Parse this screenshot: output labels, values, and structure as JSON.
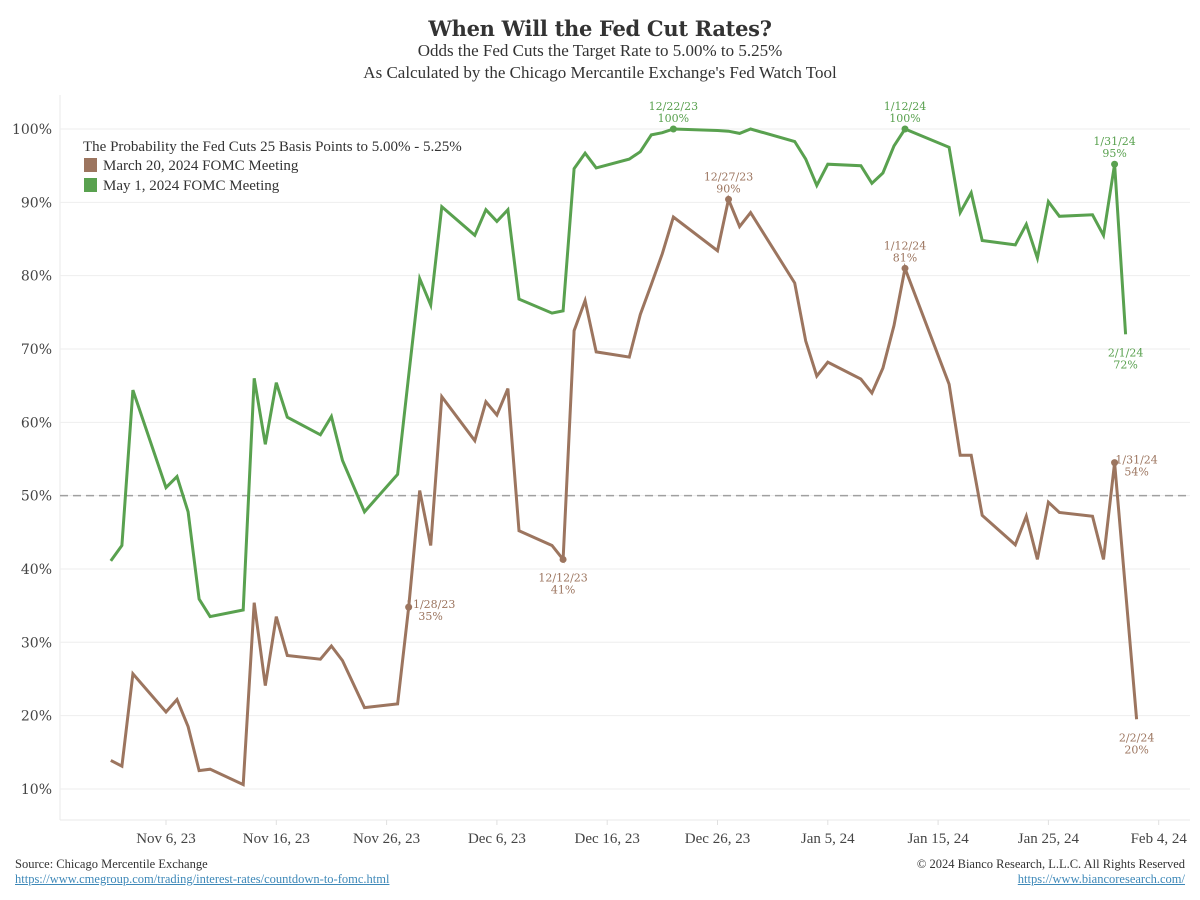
{
  "chart_data": {
    "type": "line",
    "title": "When Will the Fed Cut Rates?",
    "subtitle": [
      "Odds the Fed Cuts the Target Rate to 5.00% to 5.25%",
      "As Calculated by the Chicago Mercantile Exchange's Fed Watch Tool"
    ],
    "legend_title": "The Probability the Fed Cuts 25 Basis Points to 5.00% - 5.25%",
    "legend_position": "top-left",
    "xlabel": "",
    "ylabel": "",
    "ylim": [
      5,
      105
    ],
    "xlim": [
      "2023-10-27",
      "2024-02-06"
    ],
    "y_ticks": [
      10,
      20,
      30,
      40,
      50,
      60,
      70,
      80,
      90,
      100
    ],
    "y_tick_labels": [
      "10%",
      "20%",
      "30%",
      "40%",
      "50%",
      "60%",
      "70%",
      "80%",
      "90%",
      "100%"
    ],
    "x_ticks": [
      "2023-11-06",
      "2023-11-16",
      "2023-11-26",
      "2023-12-06",
      "2023-12-16",
      "2023-12-26",
      "2024-01-05",
      "2024-01-15",
      "2024-01-25",
      "2024-02-04"
    ],
    "x_tick_labels": [
      "Nov 6, 23",
      "Nov 16, 23",
      "Nov 26, 23",
      "Dec 6, 23",
      "Dec 16, 23",
      "Dec 26, 23",
      "Jan 5, 24",
      "Jan 15, 24",
      "Jan 25, 24",
      "Feb 4, 24"
    ],
    "grid": "horizontal",
    "reference_line": {
      "value": 50,
      "style": "dashed",
      "color": "#a0a0a0"
    },
    "series": [
      {
        "name": "March 20, 2024 FOMC Meeting",
        "color": "#9c755f",
        "data": [
          [
            "2023-11-01",
            13.9
          ],
          [
            "2023-11-02",
            13.1
          ],
          [
            "2023-11-03",
            25.7
          ],
          [
            "2023-11-06",
            20.5
          ],
          [
            "2023-11-07",
            22.2
          ],
          [
            "2023-11-08",
            18.5
          ],
          [
            "2023-11-09",
            12.5
          ],
          [
            "2023-11-10",
            12.7
          ],
          [
            "2023-11-13",
            10.6
          ],
          [
            "2023-11-14",
            35.4
          ],
          [
            "2023-11-15",
            24.1
          ],
          [
            "2023-11-16",
            33.5
          ],
          [
            "2023-11-17",
            28.2
          ],
          [
            "2023-11-20",
            27.7
          ],
          [
            "2023-11-21",
            29.5
          ],
          [
            "2023-11-22",
            27.5
          ],
          [
            "2023-11-24",
            21.1
          ],
          [
            "2023-11-27",
            21.6
          ],
          [
            "2023-11-28",
            34.8
          ],
          [
            "2023-11-29",
            50.7
          ],
          [
            "2023-11-30",
            43.2
          ],
          [
            "2023-12-01",
            63.5
          ],
          [
            "2023-12-04",
            57.5
          ],
          [
            "2023-12-05",
            62.8
          ],
          [
            "2023-12-06",
            61.0
          ],
          [
            "2023-12-07",
            64.6
          ],
          [
            "2023-12-08",
            45.2
          ],
          [
            "2023-12-11",
            43.2
          ],
          [
            "2023-12-12",
            41.3
          ],
          [
            "2023-12-13",
            72.5
          ],
          [
            "2023-12-14",
            76.6
          ],
          [
            "2023-12-15",
            69.6
          ],
          [
            "2023-12-18",
            68.9
          ],
          [
            "2023-12-19",
            74.7
          ],
          [
            "2023-12-20",
            78.8
          ],
          [
            "2023-12-21",
            83.0
          ],
          [
            "2023-12-22",
            88.0
          ],
          [
            "2023-12-26",
            83.4
          ],
          [
            "2023-12-27",
            90.4
          ],
          [
            "2023-12-28",
            86.7
          ],
          [
            "2023-12-29",
            88.6
          ],
          [
            "2024-01-02",
            79.0
          ],
          [
            "2024-01-03",
            71.1
          ],
          [
            "2024-01-04",
            66.3
          ],
          [
            "2024-01-05",
            68.2
          ],
          [
            "2024-01-08",
            65.9
          ],
          [
            "2024-01-09",
            64.0
          ],
          [
            "2024-01-10",
            67.4
          ],
          [
            "2024-01-11",
            73.2
          ],
          [
            "2024-01-12",
            81.0
          ],
          [
            "2024-01-16",
            65.2
          ],
          [
            "2024-01-17",
            55.5
          ],
          [
            "2024-01-18",
            55.5
          ],
          [
            "2024-01-19",
            47.3
          ],
          [
            "2024-01-22",
            43.3
          ],
          [
            "2024-01-23",
            47.2
          ],
          [
            "2024-01-24",
            41.3
          ],
          [
            "2024-01-25",
            49.1
          ],
          [
            "2024-01-26",
            47.7
          ],
          [
            "2024-01-29",
            47.2
          ],
          [
            "2024-01-30",
            41.3
          ],
          [
            "2024-01-31",
            54.5
          ],
          [
            "2024-02-01",
            37.0
          ],
          [
            "2024-02-02",
            19.5
          ]
        ]
      },
      {
        "name": "May 1, 2024 FOMC Meeting",
        "color": "#59a14f",
        "data": [
          [
            "2023-11-01",
            41.1
          ],
          [
            "2023-11-02",
            43.2
          ],
          [
            "2023-11-03",
            64.4
          ],
          [
            "2023-11-06",
            51.1
          ],
          [
            "2023-11-07",
            52.6
          ],
          [
            "2023-11-08",
            47.8
          ],
          [
            "2023-11-09",
            35.9
          ],
          [
            "2023-11-10",
            33.5
          ],
          [
            "2023-11-13",
            34.4
          ],
          [
            "2023-11-14",
            66.0
          ],
          [
            "2023-11-15",
            57.0
          ],
          [
            "2023-11-16",
            65.4
          ],
          [
            "2023-11-17",
            60.7
          ],
          [
            "2023-11-20",
            58.3
          ],
          [
            "2023-11-21",
            60.8
          ],
          [
            "2023-11-22",
            54.8
          ],
          [
            "2023-11-24",
            47.8
          ],
          [
            "2023-11-27",
            52.9
          ],
          [
            "2023-11-28",
            66.4
          ],
          [
            "2023-11-29",
            79.6
          ],
          [
            "2023-11-30",
            76.0
          ],
          [
            "2023-12-01",
            89.4
          ],
          [
            "2023-12-04",
            85.5
          ],
          [
            "2023-12-05",
            89.0
          ],
          [
            "2023-12-06",
            87.4
          ],
          [
            "2023-12-07",
            89.0
          ],
          [
            "2023-12-08",
            76.8
          ],
          [
            "2023-12-11",
            74.9
          ],
          [
            "2023-12-12",
            75.2
          ],
          [
            "2023-12-13",
            94.6
          ],
          [
            "2023-12-14",
            96.7
          ],
          [
            "2023-12-15",
            94.7
          ],
          [
            "2023-12-18",
            95.9
          ],
          [
            "2023-12-19",
            96.9
          ],
          [
            "2023-12-20",
            99.2
          ],
          [
            "2023-12-21",
            99.5
          ],
          [
            "2023-12-22",
            100.0
          ],
          [
            "2023-12-26",
            99.8
          ],
          [
            "2023-12-27",
            99.7
          ],
          [
            "2023-12-28",
            99.4
          ],
          [
            "2023-12-29",
            100.0
          ],
          [
            "2024-01-02",
            98.3
          ],
          [
            "2024-01-03",
            95.9
          ],
          [
            "2024-01-04",
            92.3
          ],
          [
            "2024-01-05",
            95.2
          ],
          [
            "2024-01-08",
            95.0
          ],
          [
            "2024-01-09",
            92.6
          ],
          [
            "2024-01-10",
            94.0
          ],
          [
            "2024-01-11",
            97.7
          ],
          [
            "2024-01-12",
            100.0
          ],
          [
            "2024-01-16",
            97.5
          ],
          [
            "2024-01-17",
            88.6
          ],
          [
            "2024-01-18",
            91.3
          ],
          [
            "2024-01-19",
            84.8
          ],
          [
            "2024-01-22",
            84.2
          ],
          [
            "2024-01-23",
            87.0
          ],
          [
            "2024-01-24",
            82.4
          ],
          [
            "2024-01-25",
            90.1
          ],
          [
            "2024-01-26",
            88.1
          ],
          [
            "2024-01-29",
            88.3
          ],
          [
            "2024-01-30",
            85.5
          ],
          [
            "2024-01-31",
            95.2
          ],
          [
            "2024-02-01",
            72.0
          ]
        ]
      }
    ],
    "annotations": [
      {
        "series": 0,
        "date": "2023-11-28",
        "label": "11/28/23",
        "value_label": "35%",
        "placement": "right",
        "marker": true
      },
      {
        "series": 0,
        "date": "2023-12-12",
        "label": "12/12/23",
        "value_label": "41%",
        "placement": "below",
        "marker": true
      },
      {
        "series": 1,
        "date": "2023-12-22",
        "label": "12/22/23",
        "value_label": "100%",
        "placement": "above",
        "marker": true
      },
      {
        "series": 0,
        "date": "2023-12-27",
        "label": "12/27/23",
        "value_label": "90%",
        "placement": "above",
        "marker": true
      },
      {
        "series": 1,
        "date": "2024-01-12",
        "label": "1/12/24",
        "value_label": "100%",
        "placement": "above",
        "marker": true
      },
      {
        "series": 0,
        "date": "2024-01-12",
        "label": "1/12/24",
        "value_label": "81%",
        "placement": "above",
        "marker": true
      },
      {
        "series": 1,
        "date": "2024-01-31",
        "label": "1/31/24",
        "value_label": "95%",
        "placement": "above",
        "marker": true
      },
      {
        "series": 1,
        "date": "2024-02-01",
        "label": "2/1/24",
        "value_label": "72%",
        "placement": "below",
        "marker": false
      },
      {
        "series": 0,
        "date": "2024-01-31",
        "label": "1/31/24",
        "value_label": "54%",
        "placement": "right",
        "marker": true
      },
      {
        "series": 0,
        "date": "2024-02-02",
        "label": "2/2/24",
        "value_label": "20%",
        "placement": "below",
        "marker": false
      }
    ]
  },
  "footer": {
    "source": "Source: Chicago Mercentile Exchange",
    "source_url": "https://www.cmegroup.com/trading/interest-rates/countdown-to-fomc.html",
    "copyright": "© 2024 Bianco Research, L.L.C. All Rights Reserved",
    "site_url": "https://www.biancoresearch.com/"
  }
}
